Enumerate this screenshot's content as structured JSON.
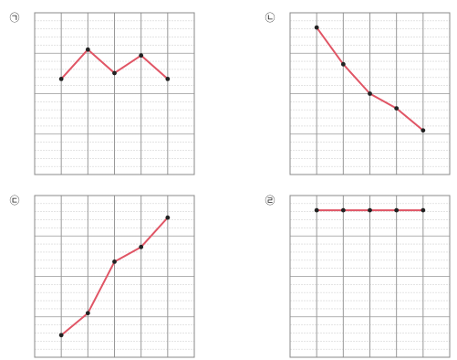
{
  "colors": {
    "line": "#e05565",
    "point": "#222222",
    "major_grid": "#999999",
    "minor_grid": "#d4d4d4",
    "frame": "#888888"
  },
  "chart_data": [
    {
      "type": "line",
      "label": "㉠",
      "x": [
        1,
        2,
        3,
        4,
        5
      ],
      "values": [
        6.5,
        8.5,
        6.9,
        8.1,
        6.5
      ],
      "ylim": [
        0,
        11
      ],
      "grid": true
    },
    {
      "type": "line",
      "label": "㉡",
      "x": [
        1,
        2,
        3,
        4,
        5
      ],
      "values": [
        10.0,
        7.5,
        5.5,
        4.5,
        3.0
      ],
      "ylim": [
        0,
        11
      ],
      "grid": true
    },
    {
      "type": "line",
      "label": "㉢",
      "x": [
        1,
        2,
        3,
        4,
        5
      ],
      "values": [
        1.5,
        3.0,
        6.5,
        7.5,
        9.5
      ],
      "ylim": [
        0,
        11
      ],
      "grid": true
    },
    {
      "type": "line",
      "label": "㉣",
      "x": [
        1,
        2,
        3,
        4,
        5
      ],
      "values": [
        10,
        10,
        10,
        10,
        10
      ],
      "ylim": [
        0,
        11
      ],
      "grid": true
    }
  ]
}
